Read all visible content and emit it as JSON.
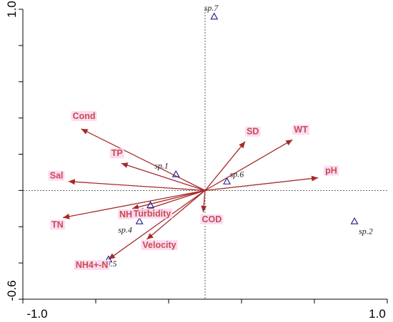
{
  "chart_data": {
    "type": "scatter",
    "subtype": "rda-biplot",
    "title": "",
    "xlabel": "",
    "ylabel": "",
    "xlim": [
      -1.0,
      1.0
    ],
    "ylim": [
      -0.6,
      1.0
    ],
    "x_tick_labels": [
      "-1.0",
      "1.0"
    ],
    "y_tick_labels": [
      "1.0",
      "-0.6"
    ],
    "reference_lines": {
      "x": 0.0,
      "y": 0.0,
      "style": "dotted"
    },
    "arrow_color": "#a52a2a",
    "label_color": "#c0504d",
    "label_highlight": "#ffd6f2",
    "species_marker": "triangle-open",
    "species_color": "#1a1a8c",
    "environmental_vectors": [
      {
        "name": "Cond",
        "x": -0.68,
        "y": 0.34
      },
      {
        "name": "TP",
        "x": -0.46,
        "y": 0.15
      },
      {
        "name": "Sal",
        "x": -0.75,
        "y": 0.05
      },
      {
        "name": "TN",
        "x": -0.78,
        "y": -0.15
      },
      {
        "name": "Turbidity",
        "x": -0.37,
        "y": -0.12
      },
      {
        "name": "NH4+-N",
        "x": -0.53,
        "y": -0.38
      },
      {
        "name": "Velocity",
        "x": -0.32,
        "y": -0.27
      },
      {
        "name": "NH",
        "x": -0.4,
        "y": -0.1
      },
      {
        "name": "COD",
        "x": -0.01,
        "y": -0.12
      },
      {
        "name": "SD",
        "x": 0.22,
        "y": 0.27
      },
      {
        "name": "WT",
        "x": 0.48,
        "y": 0.28
      },
      {
        "name": "pH",
        "x": 0.62,
        "y": 0.07
      }
    ],
    "species": [
      {
        "name": "sp.1",
        "x": -0.16,
        "y": 0.09
      },
      {
        "name": "sp.2",
        "x": 0.82,
        "y": -0.17
      },
      {
        "name": "sp.3",
        "x": -0.3,
        "y": -0.08
      },
      {
        "name": "sp.4",
        "x": -0.36,
        "y": -0.17
      },
      {
        "name": "sp.5",
        "x": -0.53,
        "y": -0.38
      },
      {
        "name": "sp.6",
        "x": 0.12,
        "y": 0.05
      },
      {
        "name": "sp.7",
        "x": 0.05,
        "y": 0.96
      }
    ]
  }
}
